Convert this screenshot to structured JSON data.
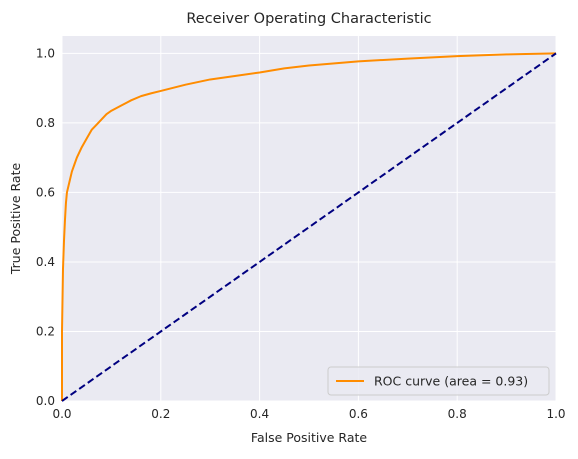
{
  "chart_data": {
    "type": "line",
    "title": "Receiver Operating Characteristic",
    "xlabel": "False Positive Rate",
    "ylabel": "True Positive Rate",
    "xlim": [
      0.0,
      1.0
    ],
    "ylim": [
      0.0,
      1.05
    ],
    "xticks": [
      0.0,
      0.2,
      0.4,
      0.6,
      0.8,
      1.0
    ],
    "yticks": [
      0.0,
      0.2,
      0.4,
      0.6,
      0.8,
      1.0
    ],
    "xtick_labels": [
      "0.0",
      "0.2",
      "0.4",
      "0.6",
      "0.8",
      "1.0"
    ],
    "ytick_labels": [
      "0.0",
      "0.2",
      "0.4",
      "0.6",
      "0.8",
      "1.0"
    ],
    "grid": true,
    "legend_position": "lower-right",
    "background_color": "#eaeaf2",
    "grid_color": "#ffffff",
    "series": [
      {
        "name": "ROC curve (area = 0.93)",
        "color": "#ff8c00",
        "style": "solid",
        "x": [
          0.0,
          0.0,
          0.002,
          0.004,
          0.006,
          0.008,
          0.01,
          0.015,
          0.02,
          0.025,
          0.03,
          0.04,
          0.05,
          0.06,
          0.07,
          0.08,
          0.09,
          0.1,
          0.12,
          0.14,
          0.16,
          0.18,
          0.2,
          0.25,
          0.3,
          0.35,
          0.4,
          0.45,
          0.5,
          0.6,
          0.7,
          0.8,
          0.9,
          1.0
        ],
        "y": [
          0.0,
          0.2,
          0.38,
          0.46,
          0.52,
          0.57,
          0.6,
          0.63,
          0.66,
          0.68,
          0.7,
          0.73,
          0.755,
          0.78,
          0.795,
          0.81,
          0.825,
          0.835,
          0.85,
          0.865,
          0.877,
          0.885,
          0.892,
          0.91,
          0.925,
          0.935,
          0.945,
          0.957,
          0.965,
          0.977,
          0.985,
          0.992,
          0.997,
          1.0
        ]
      },
      {
        "name": "",
        "color": "#000080",
        "style": "dashed",
        "x": [
          0.0,
          1.0
        ],
        "y": [
          0.0,
          1.0
        ]
      }
    ]
  }
}
